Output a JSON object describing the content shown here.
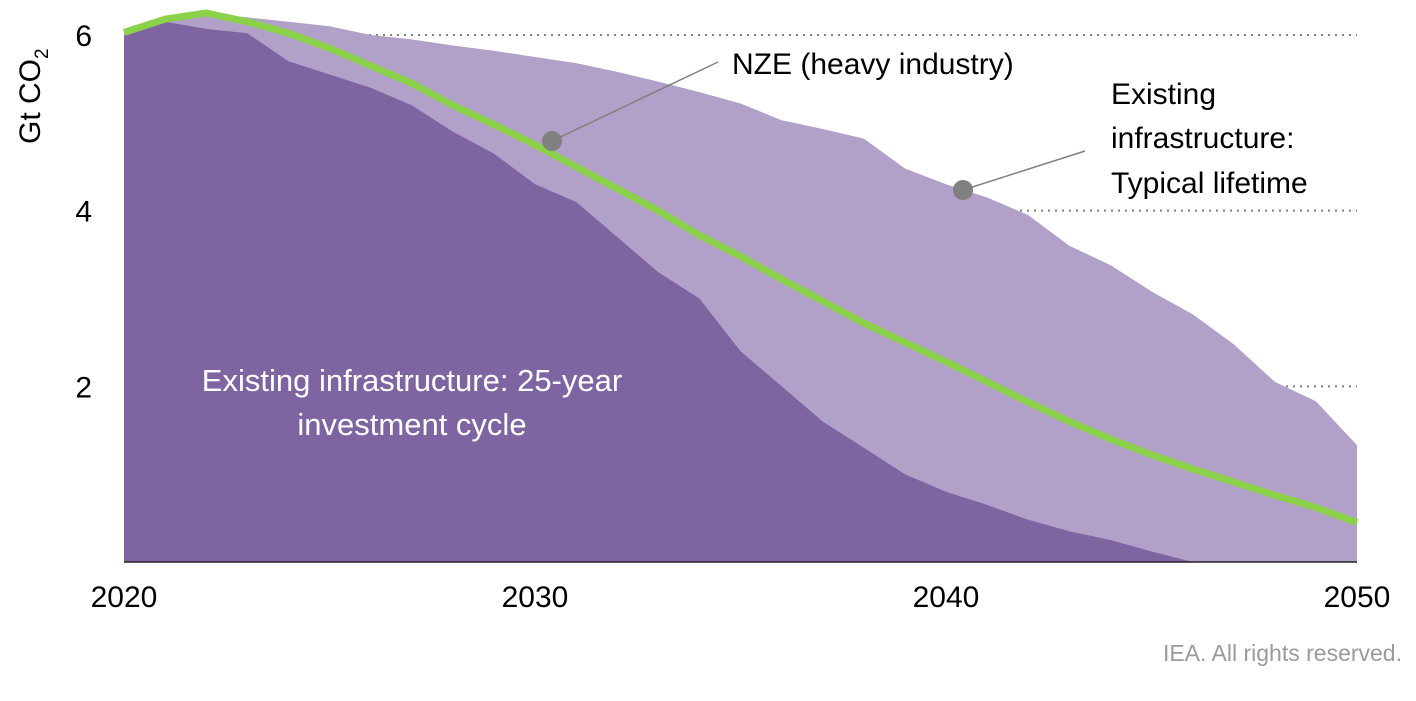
{
  "chart_data": {
    "type": "area",
    "ylabel": "Gt CO",
    "ylabel_sub": "2",
    "ylim": [
      0,
      6
    ],
    "xlim": [
      2020,
      2050
    ],
    "x_ticks": [
      "2020",
      "2030",
      "2040",
      "2050"
    ],
    "y_ticks": [
      "2",
      "4",
      "6"
    ],
    "grid": "dotted horizontal at 2, 4, 6",
    "series": [
      {
        "name": "Existing infrastructure: Typical lifetime",
        "kind": "area",
        "color": "#b1a0c7",
        "x": [
          2020,
          2021,
          2022,
          2023,
          2024,
          2025,
          2026,
          2027,
          2028,
          2029,
          2030,
          2031,
          2032,
          2033,
          2034,
          2035,
          2036,
          2037,
          2038,
          2039,
          2040,
          2041,
          2042,
          2043,
          2044,
          2045,
          2046,
          2047,
          2048,
          2049,
          2050
        ],
        "values": [
          6.05,
          6.2,
          6.25,
          6.2,
          6.15,
          6.1,
          6.0,
          5.95,
          5.88,
          5.82,
          5.75,
          5.68,
          5.58,
          5.47,
          5.35,
          5.22,
          5.03,
          4.93,
          4.82,
          4.48,
          4.3,
          4.15,
          3.95,
          3.6,
          3.38,
          3.08,
          2.82,
          2.48,
          2.05,
          1.83,
          1.33
        ]
      },
      {
        "name": "Existing infrastructure: 25-year investment cycle",
        "kind": "area",
        "color": "#7f64a2",
        "x": [
          2020,
          2021,
          2022,
          2023,
          2024,
          2025,
          2026,
          2027,
          2028,
          2029,
          2030,
          2031,
          2032,
          2033,
          2034,
          2035,
          2036,
          2037,
          2038,
          2039,
          2040,
          2041,
          2042,
          2043,
          2044,
          2045,
          2046,
          2047,
          2048,
          2049,
          2050
        ],
        "values": [
          6.0,
          6.15,
          6.07,
          6.02,
          5.7,
          5.55,
          5.4,
          5.2,
          4.9,
          4.65,
          4.3,
          4.1,
          3.7,
          3.3,
          3.0,
          2.4,
          2.0,
          1.6,
          1.3,
          1.0,
          0.8,
          0.65,
          0.48,
          0.35,
          0.25,
          0.12,
          0.0,
          0.0,
          0.0,
          0.0,
          0.0
        ]
      },
      {
        "name": "NZE (heavy industry)",
        "kind": "line",
        "color": "#8cd14a",
        "x": [
          2020,
          2021,
          2022,
          2023,
          2024,
          2025,
          2026,
          2027,
          2028,
          2029,
          2030,
          2031,
          2032,
          2033,
          2034,
          2035,
          2036,
          2037,
          2038,
          2039,
          2040,
          2041,
          2042,
          2043,
          2044,
          2045,
          2046,
          2047,
          2048,
          2049,
          2050
        ],
        "values": [
          6.03,
          6.18,
          6.25,
          6.15,
          6.02,
          5.85,
          5.65,
          5.45,
          5.2,
          4.98,
          4.75,
          4.5,
          4.25,
          4.0,
          3.72,
          3.48,
          3.22,
          2.97,
          2.72,
          2.5,
          2.28,
          2.05,
          1.82,
          1.6,
          1.4,
          1.22,
          1.06,
          0.91,
          0.76,
          0.62,
          0.45
        ]
      }
    ],
    "annotations": [
      {
        "text_lines": [
          "NZE (heavy industry)"
        ],
        "marker_x": 2030.4,
        "marker_y": 4.8
      },
      {
        "text_lines": [
          "Existing",
          "infrastructure:",
          "Typical lifetime"
        ],
        "marker_x": 2040.4,
        "marker_y": 4.23
      },
      {
        "text_lines": [
          "Existing infrastructure: 25-year",
          "investment cycle"
        ]
      }
    ],
    "credit": "IEA. All rights reserved."
  }
}
